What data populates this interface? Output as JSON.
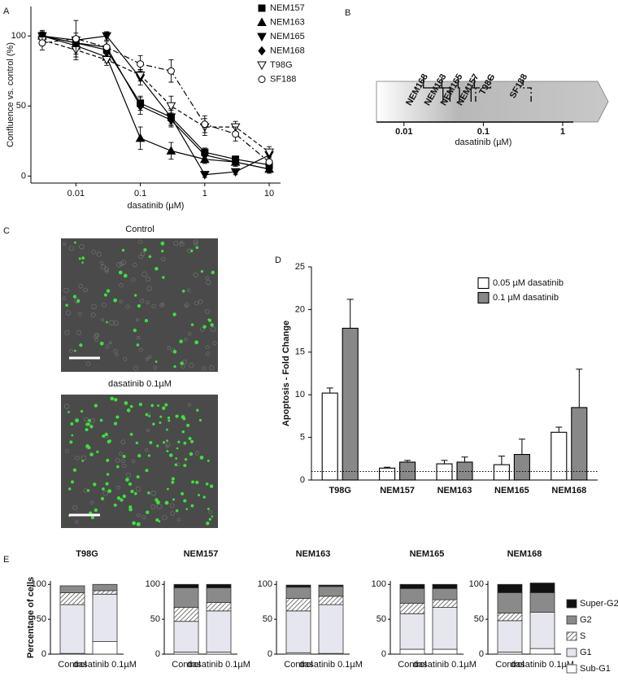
{
  "chart_data": [
    {
      "type": "line",
      "panel_label": "A",
      "xlabel": "dasatinib (µM)",
      "ylabel": "Confluence vs. control (%)",
      "x": [
        0.003,
        0.01,
        0.03,
        0.1,
        0.3,
        1,
        3,
        10
      ],
      "xscale": "log",
      "xlim": [
        0.002,
        15
      ],
      "xticks": [
        0.01,
        0.1,
        1,
        10
      ],
      "ylim": [
        -5,
        121
      ],
      "yticks": [
        0,
        50,
        100
      ],
      "legend": "upper right",
      "series": [
        {
          "name": "NEM157",
          "color": "#000000",
          "marker": "square",
          "dash": "solid",
          "values": [
            100,
            95,
            90,
            52,
            42,
            17,
            12,
            8
          ],
          "errors": [
            3,
            4,
            3,
            5,
            5,
            3,
            2,
            3
          ]
        },
        {
          "name": "NEM163",
          "color": "#000000",
          "marker": "triangle",
          "dash": "solid",
          "values": [
            100,
            93,
            85,
            27,
            18,
            12,
            10,
            5
          ],
          "errors": [
            3,
            6,
            4,
            8,
            6,
            3,
            3,
            2
          ]
        },
        {
          "name": "NEM165",
          "color": "#000000",
          "marker": "triangle-down",
          "dash": "solid",
          "values": [
            100,
            97,
            100,
            70,
            42,
            1,
            3,
            15
          ],
          "errors": [
            4,
            5,
            3,
            5,
            6,
            2,
            2,
            4
          ]
        },
        {
          "name": "NEM168",
          "color": "#000000",
          "marker": "diamond",
          "dash": "solid",
          "values": [
            100,
            95,
            92,
            50,
            40,
            15,
            10,
            5
          ],
          "errors": [
            3,
            4,
            4,
            6,
            5,
            3,
            3,
            3
          ]
        },
        {
          "name": "T98G",
          "color": "#000000",
          "marker": "triangle-down-open",
          "dash": "dashed",
          "values": [
            97,
            90,
            83,
            72,
            50,
            35,
            35,
            17
          ],
          "errors": [
            3,
            7,
            4,
            4,
            7,
            6,
            4,
            4
          ]
        },
        {
          "name": "SF188",
          "color": "#000000",
          "marker": "circle-open",
          "dash": "dashdot",
          "values": [
            95,
            98,
            92,
            80,
            75,
            37,
            30,
            10
          ],
          "errors": [
            5,
            13,
            5,
            6,
            8,
            6,
            5,
            4
          ]
        }
      ]
    },
    {
      "type": "scale",
      "panel_label": "B",
      "xlabel": "dasatinib (µM)",
      "xscale": "log",
      "xlim": [
        0.0045,
        1.36
      ],
      "xticks": [
        0.01,
        0.1,
        1
      ],
      "markers": [
        {
          "label": "NEM168",
          "value": 0.031,
          "dash": "solid"
        },
        {
          "label": "NEM163",
          "value": 0.038,
          "dash": "solid"
        },
        {
          "label": "NEM165",
          "value": 0.05,
          "dash": "solid"
        },
        {
          "label": "NEM157",
          "value": 0.07,
          "dash": "solid"
        },
        {
          "label": "T98G",
          "value": 0.08,
          "dash": "dashdot"
        },
        {
          "label": "SF188",
          "value": 0.4,
          "dash": "dashdot"
        }
      ]
    },
    {
      "type": "grouped_bar",
      "panel_label": "D",
      "ylabel": "Apoptosis - Fold Change",
      "categories": [
        "T98G",
        "NEM157",
        "NEM163",
        "NEM165",
        "NEM168"
      ],
      "ylim": [
        0,
        25
      ],
      "yticks": [
        0,
        5,
        10,
        15,
        20,
        25
      ],
      "reference_line": 1,
      "legend": "upper right",
      "series": [
        {
          "name": "0.05 µM dasatinib",
          "color": "#ffffff",
          "values": [
            10.2,
            1.4,
            1.9,
            1.8,
            5.6
          ],
          "errors": [
            0.6,
            0.1,
            0.4,
            1.0,
            0.6
          ]
        },
        {
          "name": "0.1 µM dasatinib",
          "color": "#888888",
          "values": [
            17.8,
            2.1,
            2.1,
            3.0,
            8.5
          ],
          "errors": [
            3.4,
            0.2,
            0.6,
            1.8,
            4.5
          ]
        }
      ]
    },
    {
      "type": "stacked_bar_panels",
      "panel_label": "E",
      "ylabel": "Percentage of cells",
      "panels": [
        "T98G",
        "NEM157",
        "NEM163",
        "NEM165",
        "NEM168"
      ],
      "categories": [
        "Control",
        "dasatinib 0.1µM"
      ],
      "ylim": [
        0,
        105
      ],
      "yticks": [
        0,
        50,
        100
      ],
      "series": [
        {
          "name": "Sub-G1",
          "color": "#ffffff",
          "values": [
            [
              1,
              18
            ],
            [
              3,
              3
            ],
            [
              2,
              1
            ],
            [
              7,
              7
            ],
            [
              3,
              8
            ]
          ]
        },
        {
          "name": "G1",
          "color": "#e6e6ee",
          "values": [
            [
              70,
              68
            ],
            [
              44,
              59
            ],
            [
              60,
              70
            ],
            [
              51,
              60
            ],
            [
              45,
              52
            ]
          ]
        },
        {
          "name": "S",
          "color": "#555555",
          "pattern": "hatch",
          "values": [
            [
              17,
              5
            ],
            [
              20,
              12
            ],
            [
              18,
              12
            ],
            [
              15,
              11
            ],
            [
              11,
              0
            ]
          ]
        },
        {
          "name": "G2",
          "color": "#8a8a8a",
          "values": [
            [
              10,
              9
            ],
            [
              28,
              21
            ],
            [
              16,
              14
            ],
            [
              21,
              16
            ],
            [
              29,
              28
            ]
          ]
        },
        {
          "name": "Super-G2",
          "color": "#111111",
          "values": [
            [
              0,
              0
            ],
            [
              5,
              5
            ],
            [
              3,
              2
            ],
            [
              6,
              6
            ],
            [
              12,
              14
            ]
          ]
        }
      ]
    }
  ],
  "panel_c": {
    "panel_label": "C",
    "captions": [
      "Control",
      "dasatinib 0.1µM"
    ]
  }
}
